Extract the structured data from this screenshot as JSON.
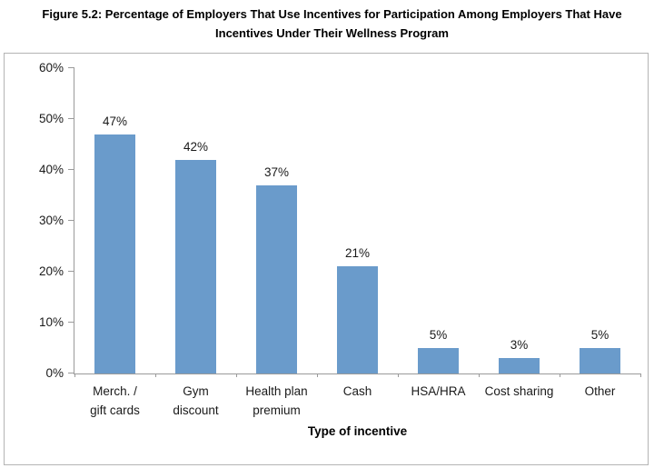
{
  "figure": {
    "title": "Figure 5.2: Percentage of Employers That Use Incentives for Participation Among Employers That Have Incentives Under Their Wellness Program"
  },
  "chart_data": {
    "type": "bar",
    "title": "Figure 5.2: Percentage of Employers That Use Incentives for Participation Among Employers That Have Incentives Under Their Wellness Program",
    "categories": [
      "Merch. / gift cards",
      "Gym discount",
      "Health plan premium",
      "Cash",
      "HSA/HRA",
      "Cost sharing",
      "Other"
    ],
    "category_label_lines": [
      [
        "Merch. /",
        "gift cards"
      ],
      [
        "Gym",
        "discount"
      ],
      [
        "Health plan",
        "premium"
      ],
      [
        "Cash"
      ],
      [
        "HSA/HRA"
      ],
      [
        "Cost sharing"
      ],
      [
        "Other"
      ]
    ],
    "values": [
      47,
      42,
      37,
      21,
      5,
      3,
      5
    ],
    "value_labels": [
      "47%",
      "42%",
      "37%",
      "21%",
      "5%",
      "3%",
      "5%"
    ],
    "xlabel": "Type of incentive",
    "ylabel": "",
    "ylim": [
      0,
      60
    ],
    "y_ticks": [
      {
        "value": 0,
        "label": "0%"
      },
      {
        "value": 10,
        "label": "10%"
      },
      {
        "value": 20,
        "label": "20%"
      },
      {
        "value": 30,
        "label": "30%"
      },
      {
        "value": 40,
        "label": "40%"
      },
      {
        "value": 50,
        "label": "50%"
      },
      {
        "value": 60,
        "label": "60%"
      }
    ],
    "grid": false,
    "legend": false,
    "colors": {
      "bar": "#6a9bcb",
      "axis": "#9a9a9a",
      "frame_border": "#b4b4b4",
      "text": "#1a1a1a"
    }
  }
}
